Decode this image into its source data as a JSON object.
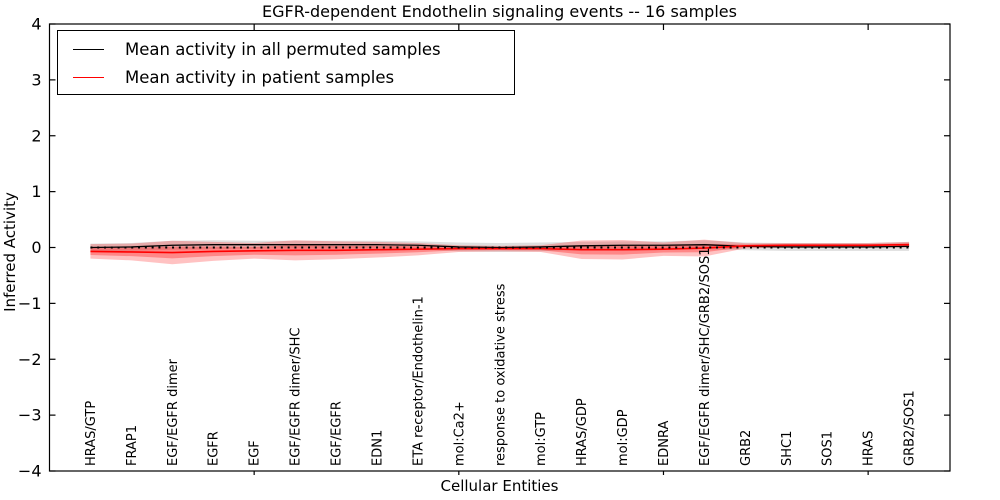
{
  "figure": {
    "title": "EGFR-dependent Endothelin signaling events -- 16 samples",
    "xlabel": "Cellular Entities",
    "ylabel": "Inferred Activity"
  },
  "legend": {
    "items": [
      {
        "label": "Mean activity in all permuted samples",
        "color": "#000000"
      },
      {
        "label": "Mean activity in patient samples",
        "color": "#ff0000"
      }
    ]
  },
  "colors": {
    "background": "#ffffff",
    "axis": "#000000",
    "permuted_line": "#000000",
    "patient_line": "#ff0000",
    "permuted_band": "rgba(0,0,0,0.13)",
    "patient_band_outer": "rgba(255,0,0,0.24)",
    "patient_band_inner": "rgba(255,0,0,0.30)",
    "zero_line": "#000000"
  },
  "chart_data": {
    "type": "line",
    "title": "EGFR-dependent Endothelin signaling events -- 16 samples",
    "xlabel": "Cellular Entities",
    "ylabel": "Inferred Activity",
    "ylim": [
      -4,
      4
    ],
    "xlim": [
      0,
      22
    ],
    "grid": false,
    "legend_position": "upper left",
    "yticks": [
      "4",
      "3",
      "2",
      "1",
      "0",
      "−1",
      "−2",
      "−3",
      "−4"
    ],
    "ytick_values": [
      4,
      3,
      2,
      1,
      0,
      -1,
      -2,
      -3,
      -4
    ],
    "xticks_major": [
      5,
      10,
      15,
      20
    ],
    "zero_reference_line": {
      "y": 0,
      "style": "dotted",
      "color": "#000000"
    },
    "categories": [
      "HRAS/GTP",
      "FRAP1",
      "EGF/EGFR dimer",
      "EGFR",
      "EGF",
      "EGF/EGFR dimer/SHC",
      "EGF/EGFR",
      "EDN1",
      "ETA receptor/Endothelin-1",
      "mol:Ca2+",
      "response to oxidative stress",
      "mol:GTP",
      "HRAS/GDP",
      "mol:GDP",
      "EDNRA",
      "EGF/EGFR dimer/SHC/GRB2/SOS1",
      "GRB2",
      "SHC1",
      "SOS1",
      "HRAS",
      "GRB2/SOS1"
    ],
    "x": [
      1,
      2,
      3,
      4,
      5,
      6,
      7,
      8,
      9,
      10,
      11,
      12,
      13,
      14,
      15,
      16,
      17,
      18,
      19,
      20,
      21
    ],
    "series": [
      {
        "name": "Mean activity in all permuted samples",
        "color": "#000000",
        "values": [
          0.0,
          0.01,
          0.04,
          0.05,
          0.05,
          0.05,
          0.05,
          0.05,
          0.04,
          0.01,
          0.0,
          0.01,
          0.03,
          0.04,
          0.04,
          0.05,
          0.02,
          0.01,
          0.01,
          0.01,
          0.02
        ],
        "band_half_width": [
          0.07,
          0.07,
          0.08,
          0.08,
          0.07,
          0.07,
          0.07,
          0.07,
          0.07,
          0.08,
          0.08,
          0.08,
          0.07,
          0.07,
          0.07,
          0.08,
          0.07,
          0.07,
          0.07,
          0.07,
          0.08
        ]
      },
      {
        "name": "Mean activity in patient samples",
        "color": "#ff0000",
        "values": [
          -0.07,
          -0.08,
          -0.09,
          -0.07,
          -0.06,
          -0.05,
          -0.05,
          -0.04,
          -0.03,
          -0.02,
          -0.02,
          -0.02,
          -0.04,
          -0.04,
          -0.03,
          -0.01,
          0.03,
          0.04,
          0.04,
          0.04,
          0.05
        ],
        "band_half_width": [
          0.13,
          0.15,
          0.21,
          0.17,
          0.14,
          0.18,
          0.16,
          0.14,
          0.11,
          0.06,
          0.05,
          0.06,
          0.165,
          0.175,
          0.12,
          0.15,
          0.045,
          0.04,
          0.04,
          0.04,
          0.05
        ],
        "inner_band_factor": 0.5
      }
    ]
  }
}
